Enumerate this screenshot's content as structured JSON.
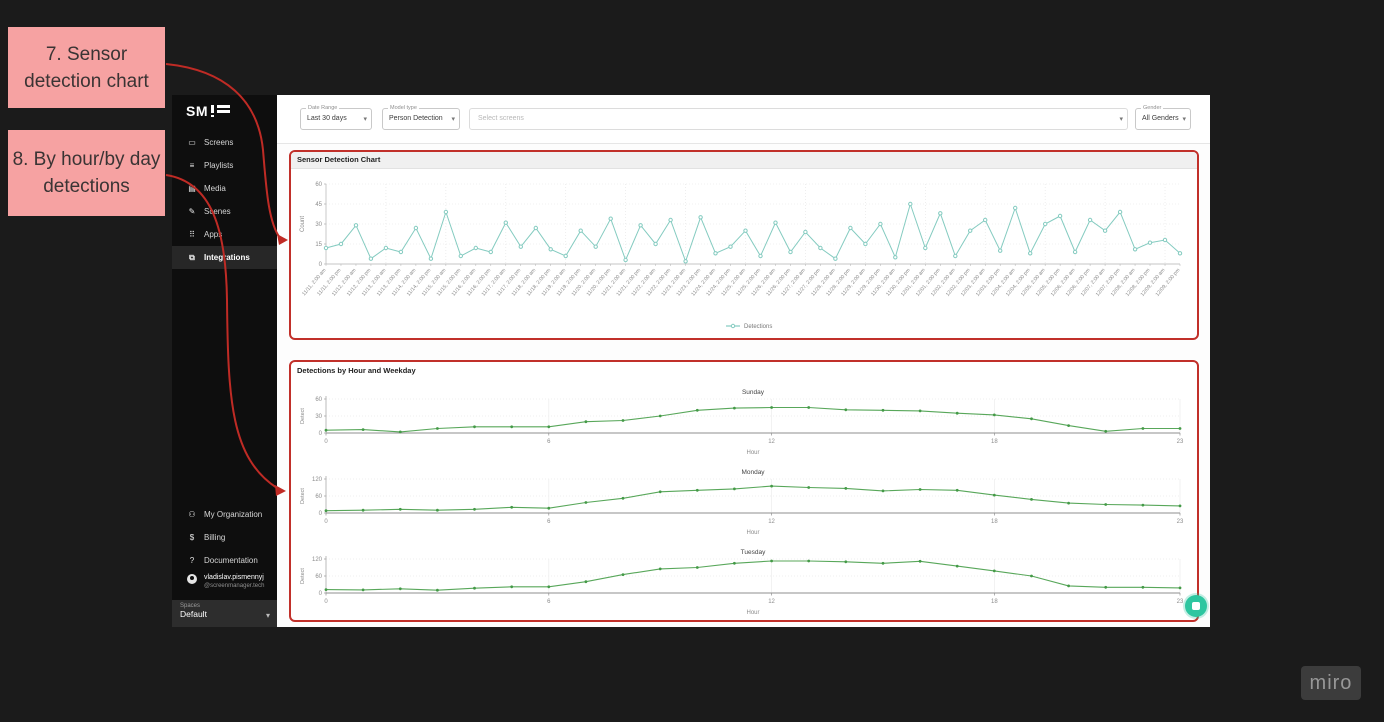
{
  "annotations": {
    "label7": "7. Sensor detection chart",
    "label8": "8. By hour/by day detections",
    "arrow_color": "#bf2b25",
    "box_color": "#f6a2a2"
  },
  "watermark": {
    "text": "miro"
  },
  "app": {
    "sidebar": {
      "logo_text": "SM",
      "items": [
        {
          "label": "Screens",
          "icon": "screens-icon",
          "glyph": "▭",
          "active": false
        },
        {
          "label": "Playlists",
          "icon": "playlists-icon",
          "glyph": "≡",
          "active": false
        },
        {
          "label": "Media",
          "icon": "media-icon",
          "glyph": "▤",
          "active": false
        },
        {
          "label": "Scenes",
          "icon": "scenes-icon",
          "glyph": "✎",
          "active": false
        },
        {
          "label": "Apps",
          "icon": "apps-icon",
          "glyph": "⠿",
          "active": false
        },
        {
          "label": "Integrations",
          "icon": "integrations-icon",
          "glyph": "⧉",
          "active": true
        }
      ],
      "bottom_items": [
        {
          "label": "My Organization",
          "icon": "organization-icon",
          "glyph": "⚇"
        },
        {
          "label": "Billing",
          "icon": "billing-icon",
          "glyph": "$"
        },
        {
          "label": "Documentation",
          "icon": "documentation-icon",
          "glyph": "?"
        }
      ],
      "user": {
        "name": "vladislav.pismennyj",
        "org": "@screenmanager.tech"
      },
      "spaces": {
        "label": "Spaces",
        "value": "Default"
      }
    },
    "filters": {
      "date_range": {
        "label": "Date Range",
        "value": "Last 30 days"
      },
      "model_type": {
        "label": "Model type",
        "value": "Person Detection"
      },
      "screens": {
        "placeholder": "Select screens"
      },
      "gender": {
        "label": "Gender",
        "value": "All Genders"
      }
    },
    "panels": {
      "sensor_title": "Sensor Detection Chart",
      "weekday_title": "Detections by Hour and Weekday"
    }
  },
  "chart_data": [
    {
      "kind": "big",
      "type": "line",
      "title": "Sensor Detection Chart",
      "ylabel": "Count",
      "legend": "Detections",
      "legend_position": "bottom",
      "grid": true,
      "ylim": [
        0,
        60
      ],
      "yticks": [
        0,
        15,
        30,
        45,
        60
      ],
      "color": "#84cbc0",
      "categories": [
        "11/11, 2:00 am",
        "11/11, 2:00 pm",
        "11/12, 2:00 am",
        "11/12, 2:00 pm",
        "11/13, 2:00 am",
        "11/13, 2:00 pm",
        "11/14, 2:00 am",
        "11/14, 2:00 pm",
        "11/15, 2:00 am",
        "11/15, 2:00 pm",
        "11/16, 2:00 am",
        "11/16, 2:00 pm",
        "11/17, 2:00 am",
        "11/17, 2:00 pm",
        "11/18, 2:00 am",
        "11/18, 2:00 pm",
        "11/19, 2:00 am",
        "11/19, 2:00 pm",
        "11/20, 2:00 am",
        "11/20, 2:00 pm",
        "11/21, 2:00 am",
        "11/21, 2:00 pm",
        "11/22, 2:00 am",
        "11/22, 2:00 pm",
        "11/23, 2:00 am",
        "11/23, 2:00 pm",
        "11/24, 2:00 am",
        "11/24, 2:00 pm",
        "11/25, 2:00 am",
        "11/25, 2:00 pm",
        "11/26, 2:00 am",
        "11/26, 2:00 pm",
        "11/27, 2:00 am",
        "11/27, 2:00 pm",
        "11/28, 2:00 am",
        "11/28, 2:00 pm",
        "11/29, 2:00 am",
        "11/29, 2:00 pm",
        "11/30, 2:00 am",
        "11/30, 2:00 pm",
        "12/01, 2:00 am",
        "12/01, 2:00 pm",
        "12/02, 2:00 am",
        "12/02, 2:00 pm",
        "12/03, 2:00 am",
        "12/03, 2:00 pm",
        "12/04, 2:00 am",
        "12/04, 2:00 pm",
        "12/05, 2:00 am",
        "12/05, 2:00 pm",
        "12/06, 2:00 am",
        "12/06, 2:00 pm",
        "12/07, 2:00 am",
        "12/07, 2:00 pm",
        "12/08, 2:00 am",
        "12/08, 2:00 pm",
        "12/09, 2:00 am",
        "12/09, 2:00 pm"
      ],
      "values": [
        12,
        15,
        29,
        4,
        12,
        9,
        27,
        4,
        39,
        6,
        12,
        9,
        31,
        13,
        27,
        11,
        6,
        25,
        13,
        34,
        3,
        29,
        15,
        33,
        2,
        35,
        8,
        13,
        25,
        6,
        31,
        9,
        24,
        12,
        4,
        27,
        15,
        30,
        5,
        45,
        12,
        38,
        6,
        25,
        33,
        10,
        42,
        8,
        30,
        36,
        9,
        33,
        25,
        39,
        11,
        16,
        18,
        8
      ]
    },
    {
      "kind": "mini",
      "type": "line",
      "title": "Sunday",
      "xlabel": "Hour",
      "ylabel": "Detect",
      "grid": true,
      "ylim": [
        0,
        60
      ],
      "yticks": [
        0,
        30,
        60
      ],
      "x_ticks": [
        0,
        6,
        12,
        18,
        23
      ],
      "color": "#58a75a",
      "x": [
        0,
        1,
        2,
        3,
        4,
        5,
        6,
        7,
        8,
        9,
        10,
        11,
        12,
        13,
        14,
        15,
        16,
        17,
        18,
        19,
        20,
        21,
        22,
        23
      ],
      "values": [
        5,
        6,
        2,
        8,
        11,
        11,
        11,
        20,
        22,
        30,
        40,
        44,
        45,
        45,
        41,
        40,
        39,
        35,
        32,
        25,
        13,
        3,
        8,
        8
      ]
    },
    {
      "kind": "mini",
      "type": "line",
      "title": "Monday",
      "xlabel": "Hour",
      "ylabel": "Detect",
      "grid": true,
      "ylim": [
        0,
        120
      ],
      "yticks": [
        0,
        60,
        120
      ],
      "x_ticks": [
        0,
        6,
        12,
        18,
        23
      ],
      "color": "#58a75a",
      "x": [
        0,
        1,
        2,
        3,
        4,
        5,
        6,
        7,
        8,
        9,
        10,
        11,
        12,
        13,
        14,
        15,
        16,
        17,
        18,
        19,
        20,
        21,
        22,
        23
      ],
      "values": [
        8,
        10,
        13,
        10,
        13,
        20,
        17,
        37,
        52,
        75,
        80,
        85,
        95,
        90,
        87,
        78,
        83,
        80,
        63,
        48,
        35,
        30,
        28,
        25
      ]
    },
    {
      "kind": "mini",
      "type": "line",
      "title": "Tuesday",
      "xlabel": "Hour",
      "ylabel": "Detect",
      "grid": true,
      "ylim": [
        0,
        120
      ],
      "yticks": [
        0,
        60,
        120
      ],
      "x_ticks": [
        0,
        6,
        12,
        18,
        23
      ],
      "color": "#58a75a",
      "x": [
        0,
        1,
        2,
        3,
        4,
        5,
        6,
        7,
        8,
        9,
        10,
        11,
        12,
        13,
        14,
        15,
        16,
        17,
        18,
        19,
        20,
        21,
        22,
        23
      ],
      "values": [
        12,
        11,
        15,
        10,
        17,
        22,
        22,
        40,
        65,
        85,
        90,
        105,
        113,
        113,
        110,
        105,
        112,
        95,
        78,
        60,
        25,
        20,
        20,
        18
      ]
    }
  ]
}
